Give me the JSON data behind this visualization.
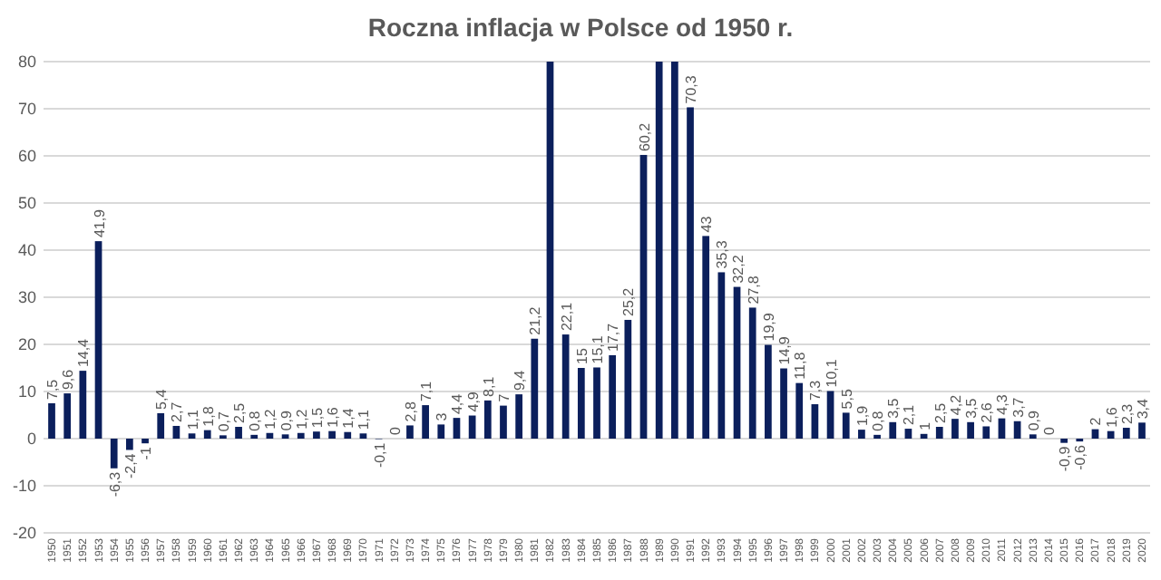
{
  "chart_data": {
    "type": "bar",
    "title": "Roczna inflacja w Polsce od 1950 r.",
    "categories": [
      "1950",
      "1951",
      "1952",
      "1953",
      "1954",
      "1955",
      "1956",
      "1957",
      "1958",
      "1959",
      "1960",
      "1961",
      "1962",
      "1963",
      "1964",
      "1965",
      "1966",
      "1967",
      "1968",
      "1969",
      "1970",
      "1971",
      "1972",
      "1973",
      "1974",
      "1975",
      "1976",
      "1977",
      "1978",
      "1979",
      "1980",
      "1981",
      "1982",
      "1983",
      "1984",
      "1985",
      "1986",
      "1987",
      "1988",
      "1989",
      "1990",
      "1991",
      "1992",
      "1993",
      "1994",
      "1995",
      "1996",
      "1997",
      "1998",
      "1999",
      "2000",
      "2001",
      "2002",
      "2003",
      "2004",
      "2005",
      "2006",
      "2007",
      "2008",
      "2009",
      "2010",
      "2011",
      "2012",
      "2013",
      "2014",
      "2015",
      "2016",
      "2017",
      "2018",
      "2019",
      "2020"
    ],
    "values": [
      7.5,
      9.6,
      14.4,
      41.9,
      -6.3,
      -2.4,
      -1,
      5.4,
      2.7,
      1.1,
      1.8,
      0.7,
      2.5,
      0.8,
      1.2,
      0.9,
      1.2,
      1.5,
      1.6,
      1.4,
      1.1,
      -0.1,
      0,
      2.8,
      7.1,
      3,
      4.4,
      4.9,
      8.1,
      7,
      9.4,
      21.2,
      80,
      22.1,
      15,
      15.1,
      17.7,
      25.2,
      60.2,
      80,
      80,
      70.3,
      43,
      35.3,
      32.2,
      27.8,
      19.9,
      14.9,
      11.8,
      7.3,
      10.1,
      5.5,
      1.9,
      0.8,
      3.5,
      2.1,
      1,
      2.5,
      4.2,
      3.5,
      2.6,
      4.3,
      3.7,
      0.9,
      0,
      -0.9,
      -0.6,
      2,
      1.6,
      2.3,
      3.4
    ],
    "value_labels": [
      "7,5",
      "9,6",
      "14,4",
      "41,9",
      "-6,3",
      "-2,4",
      "-1",
      "5,4",
      "2,7",
      "1,1",
      "1,8",
      "0,7",
      "2,5",
      "0,8",
      "1,2",
      "0,9",
      "1,2",
      "1,5",
      "1,6",
      "1,4",
      "1,1",
      "-0,1",
      "0",
      "2,8",
      "7,1",
      "3",
      "4,4",
      "4,9",
      "8,1",
      "7",
      "9,4",
      "21,2",
      null,
      "22,1",
      "15",
      "15,1",
      "17,7",
      "25,2",
      "60,2",
      null,
      null,
      "70,3",
      "43",
      "35,3",
      "32,2",
      "27,8",
      "19,9",
      "14,9",
      "11,8",
      "7,3",
      "10,1",
      "5,5",
      "1,9",
      "0,8",
      "3,5",
      "2,1",
      "1",
      "2,5",
      "4,2",
      "3,5",
      "2,6",
      "4,3",
      "3,7",
      "0,9",
      "0",
      "-0,9",
      "-0,6",
      "2",
      "1,6",
      "2,3",
      "3,4"
    ],
    "color": "#0b1f5c",
    "ylim": [
      -20,
      80
    ],
    "yticks": [
      -20,
      -10,
      0,
      10,
      20,
      30,
      40,
      50,
      60,
      70,
      80
    ],
    "grid": "y"
  }
}
